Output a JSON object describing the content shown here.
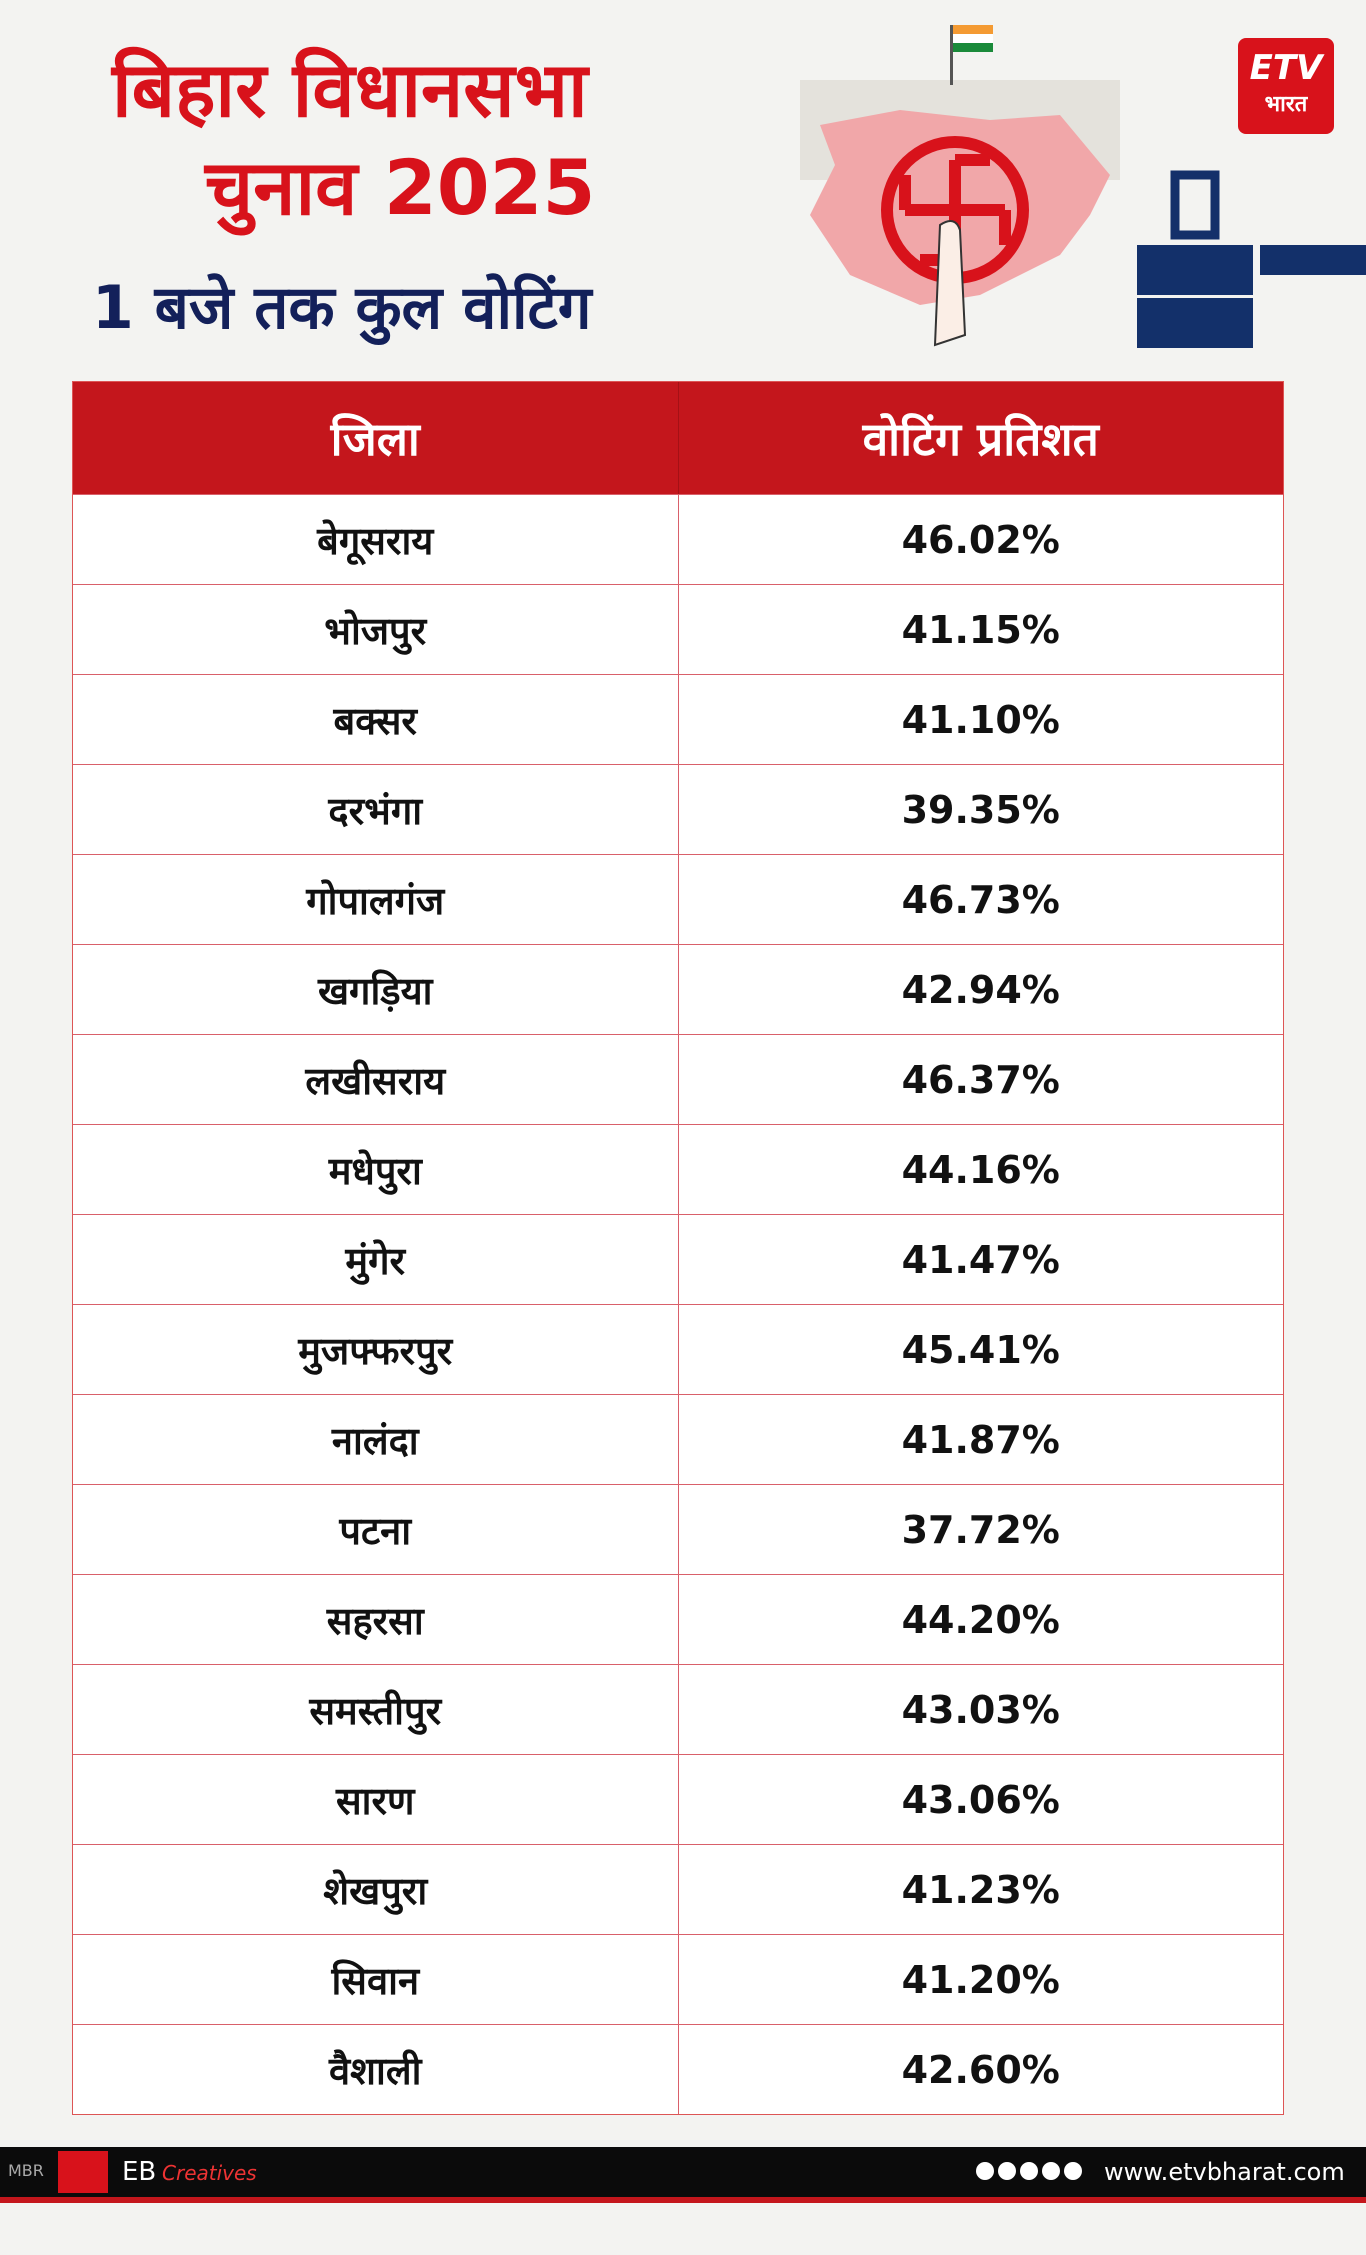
{
  "header": {
    "title_line1": "बिहार विधानसभा",
    "title_line2": "चुनाव 2025",
    "subtitle": "1 बजे तक कुल वोटिंग"
  },
  "logo": {
    "brand": "ETV",
    "subtext": "भारत"
  },
  "table": {
    "columns": [
      "जिला",
      "वोटिंग प्रतिशत"
    ],
    "rows": [
      [
        "बेगूसराय",
        "46.02%"
      ],
      [
        "भोजपुर",
        "41.15%"
      ],
      [
        "बक्सर",
        "41.10%"
      ],
      [
        "दरभंगा",
        "39.35%"
      ],
      [
        "गोपालगंज",
        "46.73%"
      ],
      [
        "खगड़िया",
        "42.94%"
      ],
      [
        "लखीसराय",
        "46.37%"
      ],
      [
        "मधेपुरा",
        "44.16%"
      ],
      [
        "मुंगेर",
        "41.47%"
      ],
      [
        "मुजफ्फरपुर",
        "45.41%"
      ],
      [
        "नालंदा",
        "41.87%"
      ],
      [
        "पटना",
        "37.72%"
      ],
      [
        "सहरसा",
        "44.20%"
      ],
      [
        "समस्तीपुर",
        "43.03%"
      ],
      [
        "सारण",
        "43.06%"
      ],
      [
        "शेखपुरा",
        "41.23%"
      ],
      [
        "सिवान",
        "41.20%"
      ],
      [
        "वैशाली",
        "42.60%"
      ]
    ]
  },
  "footer": {
    "code": "MBR",
    "brand": "EB",
    "brand_script": "Creatives",
    "website": "www.etvbharat.com"
  }
}
